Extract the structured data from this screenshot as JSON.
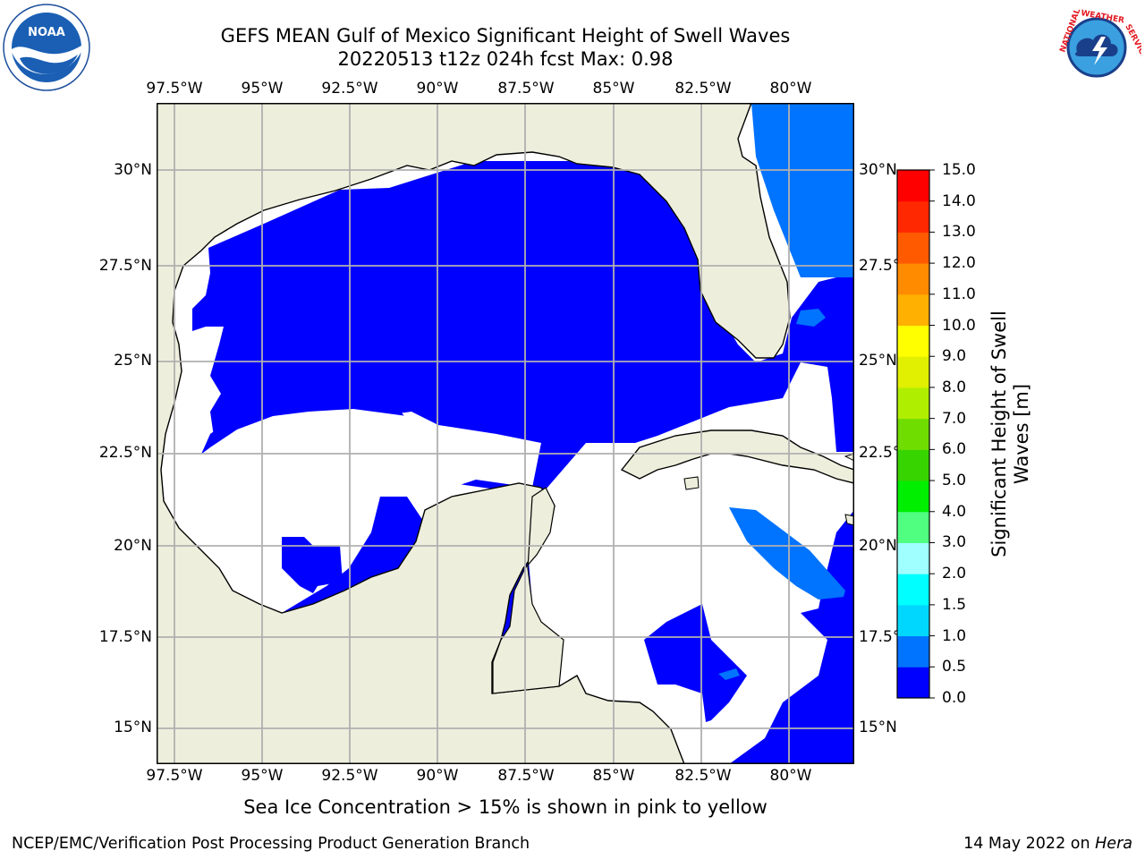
{
  "header": {
    "title_line1": "GEFS MEAN Gulf of Mexico Significant Height of Swell Waves",
    "title_line2": "20220513 t12z 024h fcst   Max: 0.98"
  },
  "logos": {
    "left": {
      "icon": "noaa-logo-icon",
      "text": "NOAA"
    },
    "right": {
      "icon": "nws-logo-icon",
      "text": "NATIONAL WEATHER SERVICE"
    }
  },
  "map": {
    "lon_labels": [
      "97.5°W",
      "95°W",
      "92.5°W",
      "90°W",
      "87.5°W",
      "85°W",
      "82.5°W",
      "80°W"
    ],
    "lat_labels_left": [
      "30°N",
      "27.5°N",
      "25°N",
      "22.5°N",
      "20°N",
      "17.5°N",
      "15°N"
    ],
    "lat_labels_right": [
      "30°N",
      "27.5°N",
      "25°N",
      "22.5°N",
      "20°N",
      "17.5°N",
      "15°N"
    ],
    "extent": {
      "lon": [
        -98,
        -78.2
      ],
      "lat": [
        14,
        32
      ]
    },
    "colors": {
      "land": "#eeeedd",
      "ocean_0_0.5": "#0000ff",
      "ocean_0.5_1.0": "#0073ff",
      "no_data": "#ffffff",
      "grid": "#b0b0b0",
      "coast": "#000000"
    }
  },
  "colorbar": {
    "label_line1": "Significant Height of Swell",
    "label_line2": "Waves [m]",
    "ticks": [
      "15.0",
      "14.0",
      "13.0",
      "12.0",
      "11.0",
      "10.0",
      "9.0",
      "8.0",
      "7.0",
      "6.0",
      "5.0",
      "4.0",
      "3.0",
      "2.0",
      "1.5",
      "1.0",
      "0.5",
      "0.0"
    ],
    "colors_bottom_to_top": [
      "#0000ff",
      "#0073ff",
      "#00d7ff",
      "#00ffff",
      "#48ffff",
      "#a0ffff",
      "#50ff80",
      "#00ee00",
      "#38d400",
      "#70dd00",
      "#b0ee00",
      "#e0f000",
      "#ffff00",
      "#ffe600",
      "#ffb000",
      "#ff8c00",
      "#ff5a00",
      "#ff2800",
      "#ff0000"
    ]
  },
  "note": "Sea Ice Concentration > 15% is shown in pink to yellow",
  "footer": {
    "left": "NCEP/EMC/Verification Post Processing Product Generation Branch",
    "right_prefix": "14 May 2022 on ",
    "right_host": "Hera"
  }
}
